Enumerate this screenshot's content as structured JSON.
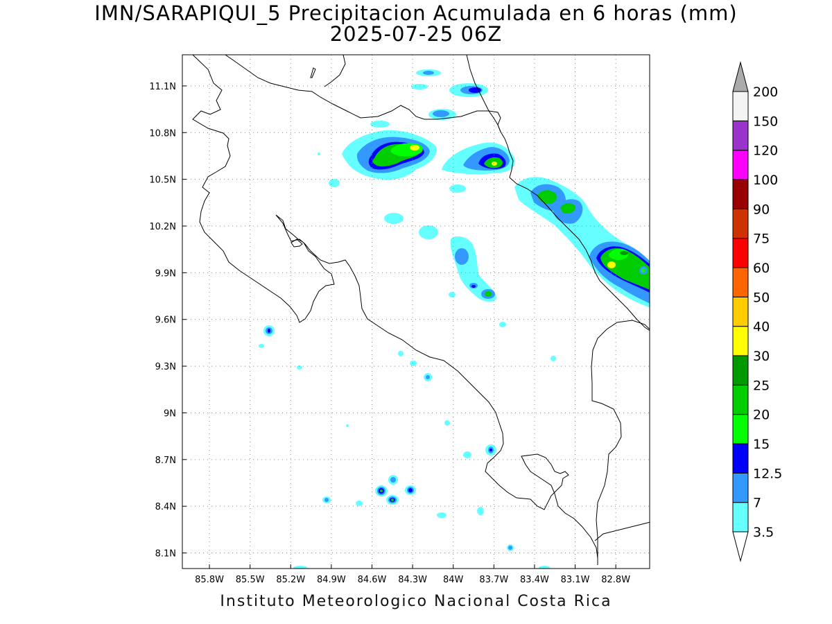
{
  "title": {
    "line1": "IMN/SARAPIQUI_5 Precipitacion Acumulada en 6 horas (mm)",
    "line2": "2025-07-25 06Z"
  },
  "footer": "Instituto Meteorologico Nacional Costa Rica",
  "map": {
    "lon_range": [
      -86.0,
      -82.55
    ],
    "lat_range": [
      8.0,
      11.3
    ],
    "grid": true,
    "lat_ticks": [
      {
        "value": 11.1,
        "label": "11.1N"
      },
      {
        "value": 10.8,
        "label": "10.8N"
      },
      {
        "value": 10.5,
        "label": "10.5N"
      },
      {
        "value": 10.2,
        "label": "10.2N"
      },
      {
        "value": 9.9,
        "label": "9.9N"
      },
      {
        "value": 9.6,
        "label": "9.6N"
      },
      {
        "value": 9.3,
        "label": "9.3N"
      },
      {
        "value": 9.0,
        "label": "9N"
      },
      {
        "value": 8.7,
        "label": "8.7N"
      },
      {
        "value": 8.4,
        "label": "8.4N"
      },
      {
        "value": 8.1,
        "label": "8.1N"
      }
    ],
    "lon_ticks": [
      {
        "value": -85.8,
        "label": "85.8W"
      },
      {
        "value": -85.5,
        "label": "85.5W"
      },
      {
        "value": -85.2,
        "label": "85.2W"
      },
      {
        "value": -84.9,
        "label": "84.9W"
      },
      {
        "value": -84.6,
        "label": "84.6W"
      },
      {
        "value": -84.3,
        "label": "84.3W"
      },
      {
        "value": -84.0,
        "label": "84W"
      },
      {
        "value": -83.7,
        "label": "83.7W"
      },
      {
        "value": -83.4,
        "label": "83.4W"
      },
      {
        "value": -83.1,
        "label": "83.1W"
      },
      {
        "value": -82.8,
        "label": "82.8W"
      }
    ]
  },
  "colorbar": {
    "levels": [
      "3.5",
      "7",
      "12.5",
      "15",
      "20",
      "25",
      "30",
      "40",
      "50",
      "60",
      "75",
      "90",
      "100",
      "120",
      "150",
      "200"
    ],
    "colors": [
      "#66ffff",
      "#3399ff",
      "#0000ff",
      "#00ff00",
      "#00cc00",
      "#009900",
      "#ffff00",
      "#ffcc00",
      "#ff6600",
      "#ff0000",
      "#cc3300",
      "#990000",
      "#ff00ff",
      "#9933cc",
      "#f4f4f4"
    ],
    "over_color": "#aaaaaa",
    "under_color": "#ffffff"
  },
  "colors": {
    "c35": "#66ffff",
    "c7": "#3399ff",
    "c125": "#0000ff",
    "c15": "#00ff00",
    "c20": "#00cc00",
    "c25": "#009900",
    "c30": "#ffff00"
  }
}
